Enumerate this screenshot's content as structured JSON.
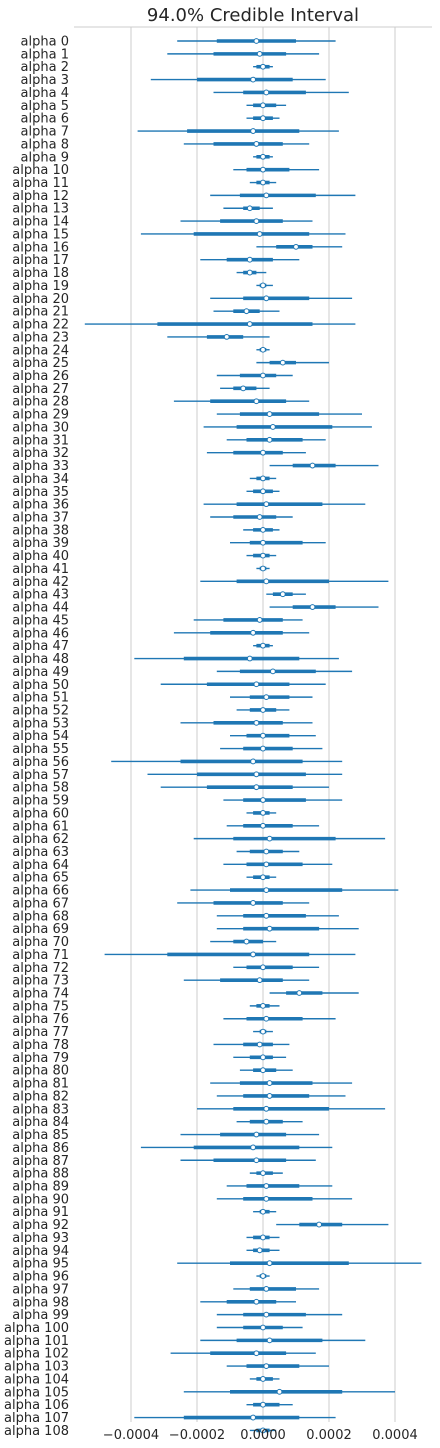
{
  "chart_data": {
    "type": "forest",
    "title": "94.0% Credible Interval",
    "xlabel": "",
    "ylabel": "",
    "xlim": [
      -0.00058,
      0.00052
    ],
    "x_ticks": [
      -0.0004,
      -0.0002,
      0.0,
      0.0002,
      0.0004
    ],
    "x_tick_labels": [
      "−0.0004",
      "−0.0002",
      "0.0000",
      "0.0002",
      "0.0004"
    ],
    "grid": "vertical",
    "colors": {
      "interval": "#1f77b4",
      "median_fill": "#ffffff",
      "grid": "#cccccc"
    },
    "columns": [
      "label",
      "median",
      "hdi_low",
      "hdi_high",
      "iqr_low",
      "iqr_high"
    ],
    "rows": [
      [
        "alpha 0",
        -2e-05,
        -0.00026,
        0.00022,
        -0.00014,
        0.0001
      ],
      [
        "alpha 1",
        -1e-05,
        -0.00029,
        0.00017,
        -0.00015,
        7e-05
      ],
      [
        "alpha 2",
        0.0,
        -3e-05,
        3e-05,
        -2e-05,
        2e-05
      ],
      [
        "alpha 3",
        -3e-05,
        -0.00034,
        0.00019,
        -0.0002,
        9e-05
      ],
      [
        "alpha 4",
        1e-05,
        -0.00015,
        0.00026,
        -6e-05,
        0.00013
      ],
      [
        "alpha 5",
        0.0,
        -5e-05,
        7e-05,
        -3e-05,
        4e-05
      ],
      [
        "alpha 6",
        0.0,
        -5e-05,
        5e-05,
        -3e-05,
        3e-05
      ],
      [
        "alpha 7",
        -3e-05,
        -0.00038,
        0.00023,
        -0.00023,
        0.00011
      ],
      [
        "alpha 8",
        -2e-05,
        -0.00024,
        0.00014,
        -0.00015,
        6e-05
      ],
      [
        "alpha 9",
        0.0,
        -3e-05,
        3e-05,
        -2e-05,
        2e-05
      ],
      [
        "alpha 10",
        0.0,
        -9e-05,
        0.00017,
        -5e-05,
        8e-05
      ],
      [
        "alpha 11",
        0.0,
        -4e-05,
        4e-05,
        -2e-05,
        2e-05
      ],
      [
        "alpha 12",
        1e-05,
        -0.00016,
        0.00028,
        -7e-05,
        0.00016
      ],
      [
        "alpha 13",
        -4e-05,
        -0.00012,
        3e-05,
        -6e-05,
        -1e-05
      ],
      [
        "alpha 14",
        -2e-05,
        -0.00025,
        0.00015,
        -0.00013,
        6e-05
      ],
      [
        "alpha 15",
        -1e-05,
        -0.00037,
        0.00025,
        -0.00021,
        0.00014
      ],
      [
        "alpha 16",
        0.0001,
        -2e-05,
        0.00024,
        4e-05,
        0.00015
      ],
      [
        "alpha 17",
        -4e-05,
        -0.00019,
        0.00011,
        -0.00011,
        3e-05
      ],
      [
        "alpha 18",
        -4e-05,
        -8e-05,
        1e-05,
        -6e-05,
        -2e-05
      ],
      [
        "alpha 19",
        0.0,
        -2e-05,
        3e-05,
        -1e-05,
        1e-05
      ],
      [
        "alpha 20",
        1e-05,
        -0.00016,
        0.00027,
        -6e-05,
        0.00014
      ],
      [
        "alpha 21",
        -5e-05,
        -0.00015,
        5e-05,
        -9e-05,
        -1e-05
      ],
      [
        "alpha 22",
        -4e-05,
        -0.00054,
        0.00028,
        -0.00032,
        0.00015
      ],
      [
        "alpha 23",
        -0.00011,
        -0.00029,
        2e-05,
        -0.00017,
        -6e-05
      ],
      [
        "alpha 24",
        0.0,
        -2e-05,
        2e-05,
        -1e-05,
        1e-05
      ],
      [
        "alpha 25",
        6e-05,
        -2e-05,
        0.0002,
        2e-05,
        0.0001
      ],
      [
        "alpha 26",
        0.0,
        -0.00014,
        9e-05,
        -7e-05,
        4e-05
      ],
      [
        "alpha 27",
        -6e-05,
        -0.00013,
        2e-05,
        -9e-05,
        -2e-05
      ],
      [
        "alpha 28",
        -2e-05,
        -0.00027,
        0.00014,
        -0.00016,
        7e-05
      ],
      [
        "alpha 29",
        2e-05,
        -0.00014,
        0.0003,
        -7e-05,
        0.00017
      ],
      [
        "alpha 30",
        3e-05,
        -0.00018,
        0.00033,
        -8e-05,
        0.00021
      ],
      [
        "alpha 31",
        2e-05,
        -0.00011,
        0.00019,
        -5e-05,
        0.00012
      ],
      [
        "alpha 32",
        0.0,
        -0.00017,
        0.00013,
        -9e-05,
        6e-05
      ],
      [
        "alpha 33",
        0.00015,
        2e-05,
        0.00035,
        9e-05,
        0.00022
      ],
      [
        "alpha 34",
        0.0,
        -4e-05,
        4e-05,
        -2e-05,
        2e-05
      ],
      [
        "alpha 35",
        0.0,
        -5e-05,
        5e-05,
        -3e-05,
        3e-05
      ],
      [
        "alpha 36",
        1e-05,
        -0.00018,
        0.00031,
        -8e-05,
        0.00018
      ],
      [
        "alpha 37",
        -1e-05,
        -0.00016,
        9e-05,
        -9e-05,
        4e-05
      ],
      [
        "alpha 38",
        0.0,
        -6e-05,
        5e-05,
        -3e-05,
        3e-05
      ],
      [
        "alpha 39",
        0.0,
        -0.0001,
        0.00019,
        -4e-05,
        0.00012
      ],
      [
        "alpha 40",
        0.0,
        -5e-05,
        4e-05,
        -3e-05,
        2e-05
      ],
      [
        "alpha 41",
        0.0,
        -2e-05,
        2e-05,
        -1e-05,
        1e-05
      ],
      [
        "alpha 42",
        1e-05,
        -0.00019,
        0.00038,
        -8e-05,
        0.0002
      ],
      [
        "alpha 43",
        6e-05,
        1e-05,
        0.00013,
        3e-05,
        9e-05
      ],
      [
        "alpha 44",
        0.00015,
        2e-05,
        0.00035,
        9e-05,
        0.00022
      ],
      [
        "alpha 45",
        -1e-05,
        -0.00021,
        0.00012,
        -0.00012,
        6e-05
      ],
      [
        "alpha 46",
        -3e-05,
        -0.00027,
        0.00014,
        -0.00016,
        6e-05
      ],
      [
        "alpha 47",
        0.0,
        -3e-05,
        3e-05,
        -2e-05,
        2e-05
      ],
      [
        "alpha 48",
        -4e-05,
        -0.00039,
        0.00023,
        -0.00024,
        0.00011
      ],
      [
        "alpha 49",
        3e-05,
        -0.00014,
        0.00027,
        -7e-05,
        0.00016
      ],
      [
        "alpha 50",
        -2e-05,
        -0.00031,
        0.00019,
        -0.00017,
        8e-05
      ],
      [
        "alpha 51",
        1e-05,
        -0.0001,
        0.00015,
        -4e-05,
        8e-05
      ],
      [
        "alpha 52",
        0.0,
        -8e-05,
        8e-05,
        -4e-05,
        4e-05
      ],
      [
        "alpha 53",
        -2e-05,
        -0.00025,
        0.00015,
        -0.00015,
        6e-05
      ],
      [
        "alpha 54",
        0.0,
        -0.0001,
        0.00016,
        -5e-05,
        8e-05
      ],
      [
        "alpha 55",
        0.0,
        -0.00013,
        0.00018,
        -6e-05,
        9e-05
      ],
      [
        "alpha 56",
        -3e-05,
        -0.00046,
        0.00024,
        -0.00025,
        0.00012
      ],
      [
        "alpha 57",
        -2e-05,
        -0.00035,
        0.00024,
        -0.0002,
        0.00013
      ],
      [
        "alpha 58",
        -2e-05,
        -0.00031,
        0.0002,
        -0.00017,
        9e-05
      ],
      [
        "alpha 59",
        0.0,
        -0.00012,
        0.00024,
        -6e-05,
        0.00013
      ],
      [
        "alpha 60",
        0.0,
        -5e-05,
        4e-05,
        -3e-05,
        2e-05
      ],
      [
        "alpha 61",
        0.0,
        -0.00011,
        0.00017,
        -6e-05,
        9e-05
      ],
      [
        "alpha 62",
        2e-05,
        -0.00021,
        0.00037,
        -9e-05,
        0.00022
      ],
      [
        "alpha 63",
        1e-05,
        -8e-05,
        0.00011,
        -4e-05,
        6e-05
      ],
      [
        "alpha 64",
        1e-05,
        -0.00012,
        0.00021,
        -5e-05,
        0.00012
      ],
      [
        "alpha 65",
        0.0,
        -5e-05,
        4e-05,
        -3e-05,
        2e-05
      ],
      [
        "alpha 66",
        1e-05,
        -0.00022,
        0.00041,
        -0.0001,
        0.00024
      ],
      [
        "alpha 67",
        -3e-05,
        -0.00026,
        0.00014,
        -0.00015,
        6e-05
      ],
      [
        "alpha 68",
        1e-05,
        -0.00014,
        0.00023,
        -6e-05,
        0.00013
      ],
      [
        "alpha 69",
        2e-05,
        -0.00014,
        0.00029,
        -6e-05,
        0.00017
      ],
      [
        "alpha 70",
        -5e-05,
        -0.00016,
        4e-05,
        -9e-05,
        0.0
      ],
      [
        "alpha 71",
        -3e-05,
        -0.00048,
        0.00028,
        -0.00029,
        0.00014
      ],
      [
        "alpha 72",
        0.0,
        -9e-05,
        0.00017,
        -5e-05,
        9e-05
      ],
      [
        "alpha 73",
        -1e-05,
        -0.00024,
        0.00014,
        -0.00013,
        6e-05
      ],
      [
        "alpha 74",
        0.00011,
        2e-05,
        0.00029,
        7e-05,
        0.00018
      ],
      [
        "alpha 75",
        0.0,
        -4e-05,
        5e-05,
        -2e-05,
        2e-05
      ],
      [
        "alpha 76",
        1e-05,
        -0.00012,
        0.00022,
        -5e-05,
        0.00012
      ],
      [
        "alpha 77",
        0.0,
        -3e-05,
        3e-05,
        -1e-05,
        1e-05
      ],
      [
        "alpha 78",
        -1e-05,
        -0.00015,
        8e-05,
        -6e-05,
        3e-05
      ],
      [
        "alpha 79",
        0.0,
        -9e-05,
        7e-05,
        -4e-05,
        3e-05
      ],
      [
        "alpha 80",
        0.0,
        -7e-05,
        9e-05,
        -3e-05,
        4e-05
      ],
      [
        "alpha 81",
        2e-05,
        -0.00016,
        0.00027,
        -7e-05,
        0.00015
      ],
      [
        "alpha 82",
        2e-05,
        -0.00014,
        0.00025,
        -6e-05,
        0.00014
      ],
      [
        "alpha 83",
        1e-05,
        -0.0002,
        0.00037,
        -9e-05,
        0.0002
      ],
      [
        "alpha 84",
        1e-05,
        -8e-05,
        0.00012,
        -4e-05,
        6e-05
      ],
      [
        "alpha 85",
        -2e-05,
        -0.00025,
        0.00017,
        -0.00013,
        7e-05
      ],
      [
        "alpha 86",
        -3e-05,
        -0.00037,
        0.00021,
        -0.00021,
        0.00011
      ],
      [
        "alpha 87",
        -2e-05,
        -0.00025,
        0.00016,
        -0.00015,
        7e-05
      ],
      [
        "alpha 88",
        0.0,
        -4e-05,
        6e-05,
        -2e-05,
        3e-05
      ],
      [
        "alpha 89",
        1e-05,
        -0.00011,
        0.00021,
        -5e-05,
        0.00011
      ],
      [
        "alpha 90",
        1e-05,
        -0.00014,
        0.00027,
        -6e-05,
        0.00015
      ],
      [
        "alpha 91",
        0.0,
        -3e-05,
        4e-05,
        -1e-05,
        2e-05
      ],
      [
        "alpha 92",
        0.00017,
        4e-05,
        0.00038,
        0.00011,
        0.00024
      ],
      [
        "alpha 93",
        0.0,
        -5e-05,
        5e-05,
        -3e-05,
        2e-05
      ],
      [
        "alpha 94",
        -1e-05,
        -5e-05,
        5e-05,
        -3e-05,
        2e-05
      ],
      [
        "alpha 95",
        2e-05,
        -0.00026,
        0.00048,
        -0.0001,
        0.00026
      ],
      [
        "alpha 96",
        0.0,
        -2e-05,
        2e-05,
        -1e-05,
        1e-05
      ],
      [
        "alpha 97",
        1e-05,
        -9e-05,
        0.00017,
        -4e-05,
        0.0001
      ],
      [
        "alpha 98",
        -2e-05,
        -0.00019,
        0.0001,
        -0.00011,
        4e-05
      ],
      [
        "alpha 99",
        1e-05,
        -0.00014,
        0.00024,
        -6e-05,
        0.00013
      ],
      [
        "alpha 100",
        0.0,
        -0.00014,
        0.00012,
        -6e-05,
        6e-05
      ],
      [
        "alpha 101",
        2e-05,
        -0.00019,
        0.00031,
        -8e-05,
        0.00018
      ],
      [
        "alpha 102",
        -2e-05,
        -0.00028,
        0.00016,
        -0.00016,
        7e-05
      ],
      [
        "alpha 103",
        1e-05,
        -0.00011,
        0.0002,
        -5e-05,
        0.00011
      ],
      [
        "alpha 104",
        0.0,
        -4e-05,
        5e-05,
        -2e-05,
        3e-05
      ],
      [
        "alpha 105",
        5e-05,
        -0.00024,
        0.0004,
        -0.0001,
        0.00024
      ],
      [
        "alpha 106",
        0.0,
        -5e-05,
        9e-05,
        -3e-05,
        5e-05
      ],
      [
        "alpha 107",
        -3e-05,
        -0.00039,
        0.00022,
        -0.00024,
        0.00011
      ],
      [
        "alpha 108",
        0.0,
        -4e-05,
        4e-05,
        -2e-05,
        2e-05
      ]
    ]
  }
}
